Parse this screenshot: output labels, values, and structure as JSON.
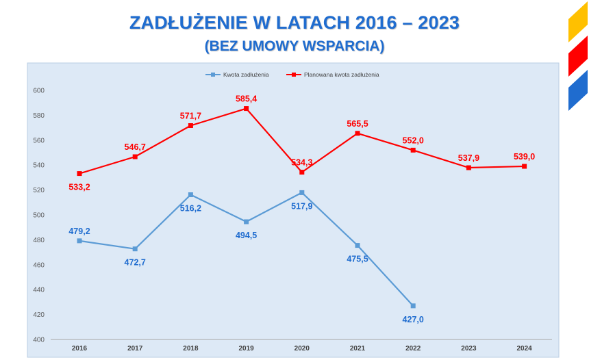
{
  "page": {
    "title": "ZADŁUŻENIE W LATACH 2016 – 2023",
    "subtitle": "(BEZ UMOWY WSPARCIA)",
    "colors": {
      "title": "#1f6ccf",
      "plot_background": "#dde9f6",
      "series_debt": "#5b9bd5",
      "series_debt_labels": "#1f6ccf",
      "series_planned": "#ff0000",
      "logo": [
        "#ffc000",
        "#ff0000",
        "#1f6ccf"
      ]
    }
  },
  "chart_data": {
    "type": "line",
    "categories": [
      "2016",
      "2017",
      "2018",
      "2019",
      "2020",
      "2021",
      "2022",
      "2023",
      "2024"
    ],
    "ylim": [
      400,
      600
    ],
    "yticks": [
      "400",
      "420",
      "440",
      "460",
      "480",
      "500",
      "520",
      "540",
      "560",
      "580",
      "600"
    ],
    "grid": false,
    "legend_position": "top-center",
    "series": [
      {
        "name": "Kwota zadłużenia",
        "values": [
          479.2,
          472.7,
          516.2,
          494.5,
          517.9,
          475.5,
          427.0,
          null,
          null
        ],
        "labels": [
          "479,2",
          "472,7",
          "516,2",
          "494,5",
          "517,9",
          "475,5",
          "427,0",
          "",
          ""
        ],
        "label_position": [
          "above",
          "below",
          "below",
          "below",
          "below",
          "below",
          "below",
          "",
          ""
        ]
      },
      {
        "name": "Planowana kwota zadłużenia",
        "values": [
          533.2,
          546.7,
          571.7,
          585.4,
          534.3,
          565.5,
          552.0,
          537.9,
          539.0
        ],
        "labels": [
          "533,2",
          "546,7",
          "571,7",
          "585,4",
          "534,3",
          "565,5",
          "552,0",
          "537,9",
          "539,0"
        ],
        "label_position": [
          "below",
          "above",
          "above",
          "above",
          "above",
          "above",
          "above",
          "above",
          "above"
        ]
      }
    ]
  }
}
